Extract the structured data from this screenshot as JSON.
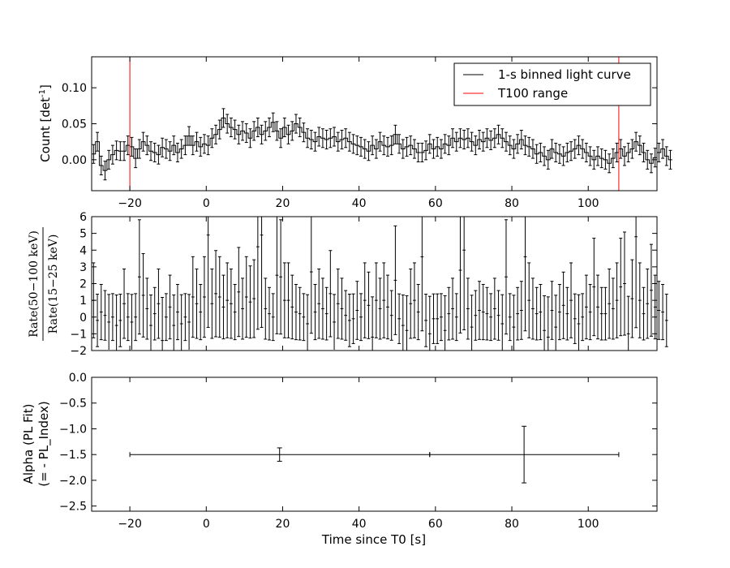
{
  "chart_data": [
    {
      "type": "line",
      "panel": "light-curve",
      "xlim": [
        -30,
        118
      ],
      "ylim": [
        -0.043,
        0.143
      ],
      "ylabel": "Count [det",
      "ylabel_sup": "-1",
      "ylabel_close": "]",
      "yticks": [
        "0.00",
        "0.05",
        "0.10"
      ],
      "yticks_values": [
        0,
        0.05,
        0.1
      ],
      "grid": false,
      "legend": {
        "placement": "top-right",
        "entries": [
          {
            "label": "1-s binned light curve",
            "color": "#000000"
          },
          {
            "label": "T100 range",
            "color": "#ff0000"
          }
        ]
      },
      "t100_range": [
        -20,
        108
      ],
      "series": [
        {
          "name": "1-s binned light curve",
          "x_start": -30,
          "bin_width": 1,
          "values": [
            0.008,
            0.025,
            -0.008,
            -0.015,
            0.0,
            0.007,
            0.013,
            0.012,
            0.012,
            0.02,
            0.018,
            0.002,
            0.015,
            0.025,
            0.02,
            0.012,
            0.01,
            0.007,
            0.017,
            0.015,
            0.012,
            0.02,
            0.01,
            0.015,
            0.02,
            0.033,
            0.02,
            0.025,
            0.018,
            0.022,
            0.02,
            0.03,
            0.035,
            0.042,
            0.058,
            0.05,
            0.045,
            0.042,
            0.035,
            0.04,
            0.037,
            0.03,
            0.04,
            0.045,
            0.035,
            0.04,
            0.045,
            0.052,
            0.04,
            0.03,
            0.045,
            0.035,
            0.04,
            0.05,
            0.045,
            0.038,
            0.03,
            0.028,
            0.025,
            0.032,
            0.03,
            0.028,
            0.03,
            0.032,
            0.025,
            0.028,
            0.03,
            0.025,
            0.022,
            0.02,
            0.018,
            0.015,
            0.012,
            0.02,
            0.015,
            0.025,
            0.02,
            0.018,
            0.02,
            0.035,
            0.022,
            0.015,
            0.018,
            0.02,
            0.015,
            0.01,
            0.01,
            0.013,
            0.022,
            0.015,
            0.018,
            0.015,
            0.022,
            0.02,
            0.03,
            0.025,
            0.03,
            0.028,
            0.03,
            0.025,
            0.02,
            0.028,
            0.025,
            0.03,
            0.027,
            0.03,
            0.035,
            0.03,
            0.025,
            0.02,
            0.015,
            0.022,
            0.028,
            0.02,
            0.018,
            0.015,
            0.008,
            0.01,
            0.005,
            0.0,
            0.015,
            0.01,
            0.008,
            0.005,
            0.01,
            0.012,
            0.015,
            0.02,
            0.015,
            0.01,
            0.005,
            0.0,
            0.005,
            0.002,
            0.0,
            -0.005,
            0.002,
            0.01,
            0.015,
            0.005,
            0.01,
            0.015,
            0.025,
            0.02,
            0.01,
            0.0,
            -0.005,
            0.003,
            0.01,
            0.015,
            0.005,
            0.0
          ],
          "error": 0.013
        }
      ]
    },
    {
      "type": "scatter",
      "panel": "hardness-ratio",
      "xlim": [
        -30,
        118
      ],
      "ylim": [
        -2,
        6
      ],
      "yticks": [
        "−2",
        "−1",
        "0",
        "1",
        "2",
        "3",
        "4",
        "5",
        "6"
      ],
      "yticks_values": [
        -2,
        -1,
        0,
        1,
        2,
        3,
        4,
        5,
        6
      ],
      "ylabel_numerator": "Rate(50−100 keV)",
      "ylabel_denominator": "Rate(15−25 keV)",
      "grid": false,
      "series": [
        {
          "name": "",
          "x_start": -29.5,
          "bin_width": 1,
          "values": [
            1.0,
            -0.2,
            0.3,
            0.1,
            -0.3,
            0.0,
            -0.5,
            -0.2,
            0.8,
            0.0,
            -0.3,
            0.0,
            2.4,
            1.3,
            0.5,
            -0.5,
            0.2,
            0.8,
            -1.4,
            0.0,
            0.6,
            -0.5,
            0.3,
            -0.4,
            0.0,
            -0.3,
            1.2,
            0.8,
            0.3,
            1.2,
            4.9,
            0.8,
            1.4,
            1.2,
            0.6,
            1.0,
            0.8,
            0.3,
            1.5,
            0.5,
            1.2,
            0.9,
            1.1,
            4.2,
            4.9,
            0.5,
            0.2,
            0.0,
            2.5,
            2.4,
            1.0,
            1.0,
            0.6,
            0.3,
            0.2,
            0.0,
            -0.4,
            2.7,
            0.3,
            0.8,
            0.5,
            0.2,
            1.4,
            -0.3,
            0.8,
            0.5,
            0.1,
            -0.2,
            -0.1,
            0.4,
            0.0,
            1.0,
            0.7,
            -1.2,
            1.0,
            0.5,
            1.0,
            0.6,
            0.1,
            2.2,
            -0.1,
            -0.5,
            -0.8,
            0.8,
            1.0,
            0.3,
            3.6,
            -0.2,
            -1.0,
            -0.1,
            -0.1,
            0.0,
            -0.8,
            0.2,
            0.5,
            0.0,
            2.8,
            4.0,
            0.5,
            -0.6,
            0.1,
            0.4,
            0.3,
            0.2,
            0.0,
            0.5,
            0.1,
            -0.4,
            2.4,
            0.0,
            -0.6,
            0.2,
            0.4,
            3.6,
            1.0,
            0.5,
            0.2,
            0.3,
            -0.8,
            -1.2,
            0.4,
            -0.6,
            0.3,
            0.7,
            0.2,
            1.0,
            -0.1,
            -0.4,
            0.0,
            0.6,
            0.3,
            1.8,
            0.6,
            0.2,
            0.2,
            0.8,
            0.5,
            1.0,
            1.8,
            2.0,
            -1.0,
            1.1,
            4.8,
            1.0,
            0.2,
            0.8,
            1.6,
            0.6,
            0.4,
            0.3,
            -0.2
          ],
          "error": 1.4
        }
      ]
    },
    {
      "type": "scatter",
      "panel": "alpha",
      "xlim": [
        -30,
        118
      ],
      "ylim": [
        -2.6,
        0
      ],
      "yticks": [
        "−2.5",
        "−2.0",
        "−1.5",
        "−1.0",
        "−0.5",
        "0.0"
      ],
      "yticks_values": [
        -2.5,
        -2.0,
        -1.5,
        -1.0,
        -0.5,
        0.0
      ],
      "ylabel_line1": "Alpha (PL Fit)",
      "ylabel_line2": "(= - PL_Index)",
      "xlabel": "Time since T0 [s]",
      "xticks": [
        "−20",
        "0",
        "20",
        "40",
        "60",
        "80",
        "100"
      ],
      "xticks_values": [
        -20,
        0,
        20,
        40,
        60,
        80,
        100
      ],
      "grid": false,
      "points": [
        {
          "x": 19.2,
          "x_low": -20,
          "x_high": 58.5,
          "y": -1.5,
          "y_err": 0.13
        },
        {
          "x": 83.2,
          "x_low": 58.5,
          "x_high": 108,
          "y": -1.5,
          "y_err": 0.55
        }
      ]
    }
  ]
}
